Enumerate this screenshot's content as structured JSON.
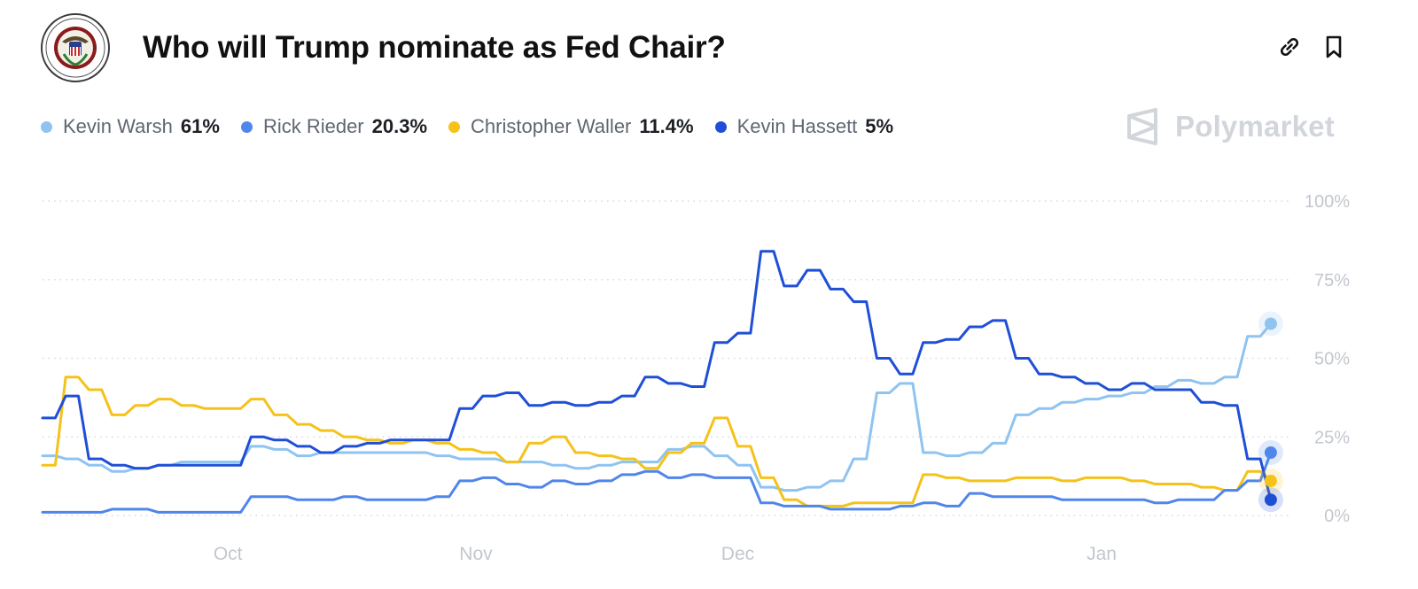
{
  "header": {
    "title": "Who will Trump nominate as Fed Chair?",
    "logo_icon": "federal-reserve-seal",
    "link_icon": "link-icon",
    "bookmark_icon": "bookmark-icon"
  },
  "brand": {
    "name": "Polymarket",
    "icon": "polymarket-logo-icon",
    "color": "#d2d5da"
  },
  "legend": [
    {
      "name": "Kevin Warsh",
      "value": "61%",
      "color": "#8fc3f0"
    },
    {
      "name": "Rick Rieder",
      "value": "20.3%",
      "color": "#4f86ec"
    },
    {
      "name": "Christopher Waller",
      "value": "11.4%",
      "color": "#f5c21b"
    },
    {
      "name": "Kevin Hassett",
      "value": "5%",
      "color": "#1f4fd6"
    }
  ],
  "chart_data": {
    "type": "line",
    "title": "",
    "xlabel": "",
    "ylabel": "",
    "x_ticks": [
      "Oct",
      "Nov",
      "Dec",
      "Jan"
    ],
    "y_ticks": [
      "100%",
      "75%",
      "50%",
      "25%",
      "0%"
    ],
    "ylim": [
      0,
      100
    ],
    "grid": true,
    "legend_position": "top-left",
    "x": [
      "Sep 8",
      "Sep 10",
      "Sep 12",
      "Sep 15",
      "Sep 18",
      "Sep 21",
      "Sep 24",
      "Sep 27",
      "Sep 30",
      "Oct 3",
      "Oct 6",
      "Oct 9",
      "Oct 12",
      "Oct 15",
      "Oct 18",
      "Oct 21",
      "Oct 24",
      "Oct 27",
      "Oct 30",
      "Nov 2",
      "Nov 5",
      "Nov 8",
      "Nov 11",
      "Nov 14",
      "Nov 17",
      "Nov 20",
      "Nov 23",
      "Nov 26",
      "Nov 27",
      "Nov 29",
      "Dec 1",
      "Dec 3",
      "Dec 5",
      "Dec 7",
      "Dec 9",
      "Dec 11",
      "Dec 13",
      "Dec 15",
      "Dec 17",
      "Dec 19",
      "Dec 21",
      "Dec 23",
      "Dec 25",
      "Dec 27",
      "Dec 29",
      "Dec 31",
      "Jan 2",
      "Jan 4",
      "Jan 6",
      "Jan 8",
      "Jan 10",
      "Jan 12",
      "Jan 14",
      "Jan 16"
    ],
    "series": [
      {
        "name": "Kevin Warsh",
        "color": "#8fc3f0",
        "values": [
          19,
          18,
          16,
          14,
          15,
          16,
          17,
          17,
          17,
          22,
          21,
          19,
          20,
          20,
          20,
          20,
          20,
          19,
          18,
          18,
          17,
          17,
          16,
          15,
          16,
          17,
          17,
          21,
          22,
          19,
          16,
          9,
          8,
          9,
          11,
          18,
          39,
          42,
          20,
          19,
          20,
          23,
          32,
          34,
          36,
          37,
          38,
          39,
          41,
          43,
          42,
          44,
          57,
          61
        ]
      },
      {
        "name": "Rick Rieder",
        "color": "#4f86ec",
        "values": [
          1,
          1,
          1,
          2,
          2,
          1,
          1,
          1,
          1,
          6,
          6,
          5,
          5,
          6,
          5,
          5,
          5,
          6,
          11,
          12,
          10,
          9,
          11,
          10,
          11,
          13,
          14,
          12,
          13,
          12,
          12,
          4,
          3,
          3,
          2,
          2,
          2,
          3,
          4,
          3,
          7,
          6,
          6,
          6,
          5,
          5,
          5,
          5,
          4,
          5,
          5,
          8,
          11,
          20
        ]
      },
      {
        "name": "Christopher Waller",
        "color": "#f5c21b",
        "values": [
          16,
          44,
          40,
          32,
          35,
          37,
          35,
          34,
          34,
          37,
          32,
          29,
          27,
          25,
          24,
          23,
          24,
          23,
          21,
          20,
          17,
          23,
          25,
          20,
          19,
          18,
          15,
          20,
          23,
          31,
          22,
          12,
          5,
          3,
          3,
          4,
          4,
          4,
          13,
          12,
          11,
          11,
          12,
          12,
          11,
          12,
          12,
          11,
          10,
          10,
          9,
          8,
          14,
          11
        ]
      },
      {
        "name": "Kevin Hassett",
        "color": "#1f4fd6",
        "values": [
          31,
          38,
          18,
          16,
          15,
          16,
          16,
          16,
          16,
          25,
          24,
          22,
          20,
          22,
          23,
          24,
          24,
          24,
          34,
          38,
          39,
          35,
          36,
          35,
          36,
          38,
          44,
          42,
          41,
          55,
          58,
          84,
          73,
          78,
          72,
          68,
          50,
          45,
          55,
          56,
          60,
          62,
          50,
          45,
          44,
          42,
          40,
          42,
          40,
          40,
          36,
          35,
          18,
          5
        ]
      }
    ]
  }
}
